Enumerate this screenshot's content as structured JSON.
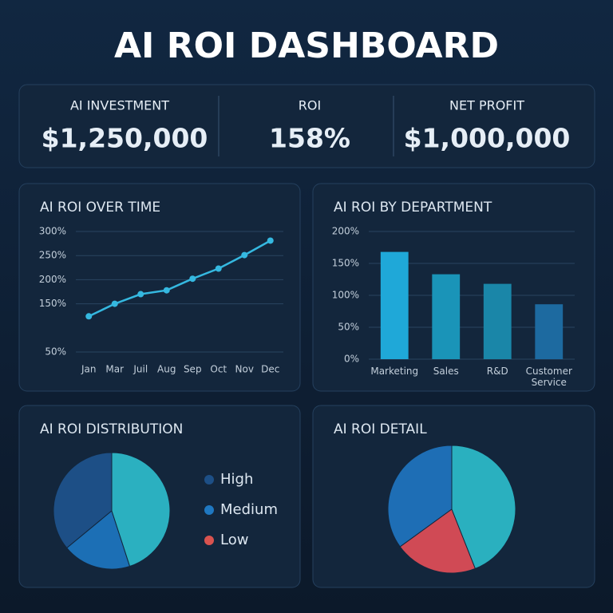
{
  "title": "AI ROI DASHBOARD",
  "kpis": [
    {
      "label": "AI INVESTMENT",
      "value": "$1,250,000"
    },
    {
      "label": "ROI",
      "value": "158%"
    },
    {
      "label": "NET PROFIT",
      "value": "$1,000,000"
    }
  ],
  "chart_data": [
    {
      "type": "line",
      "title": "AI ROI OVER TIME",
      "categories": [
        "Jan",
        "Mar",
        "Juil",
        "Aug",
        "Sep",
        "Oct",
        "Nov",
        "Dec"
      ],
      "values": [
        124,
        150,
        170,
        178,
        202,
        223,
        251,
        281
      ],
      "color": "#35b8e0",
      "ylim": [
        50,
        300
      ],
      "yticks": [
        {
          "value": 300,
          "label": "300%"
        },
        {
          "value": 250,
          "label": "250%"
        },
        {
          "value": 200,
          "label": "200%"
        },
        {
          "value": 150,
          "label": "150%"
        },
        {
          "value": 50,
          "label": "50%"
        }
      ],
      "grid": true
    },
    {
      "type": "bar",
      "title": "AI ROI BY DEPARTMENT",
      "categories": [
        "Marketing",
        "Sales",
        "R&D",
        "Customer Service"
      ],
      "values": [
        168,
        133,
        118,
        86
      ],
      "colors": [
        "#1fa8d8",
        "#1a94b8",
        "#1a86a8",
        "#1d6aa0"
      ],
      "ylim": [
        0,
        200
      ],
      "yticks": [
        {
          "value": 200,
          "label": "200%"
        },
        {
          "value": 150,
          "label": "150%"
        },
        {
          "value": 100,
          "label": "100%"
        },
        {
          "value": 50,
          "label": "50%"
        },
        {
          "value": 0,
          "label": "0%"
        }
      ],
      "grid": true
    },
    {
      "type": "pie",
      "title": "AI ROI DISTRIBUTION",
      "categories": [
        "High",
        "Medium",
        "Low"
      ],
      "values": [
        36,
        19,
        45
      ],
      "colors": [
        "#1d4f86",
        "#1c6fb5",
        "#2bb0c0"
      ],
      "legend_colors": [
        "#1d4f86",
        "#1f78c1",
        "#d9534f"
      ]
    },
    {
      "type": "pie",
      "title": "AI ROI DETAIL",
      "values": [
        35,
        21,
        44
      ],
      "colors": [
        "#1e6eb5",
        "#d04a55",
        "#2ab0bf"
      ]
    }
  ]
}
